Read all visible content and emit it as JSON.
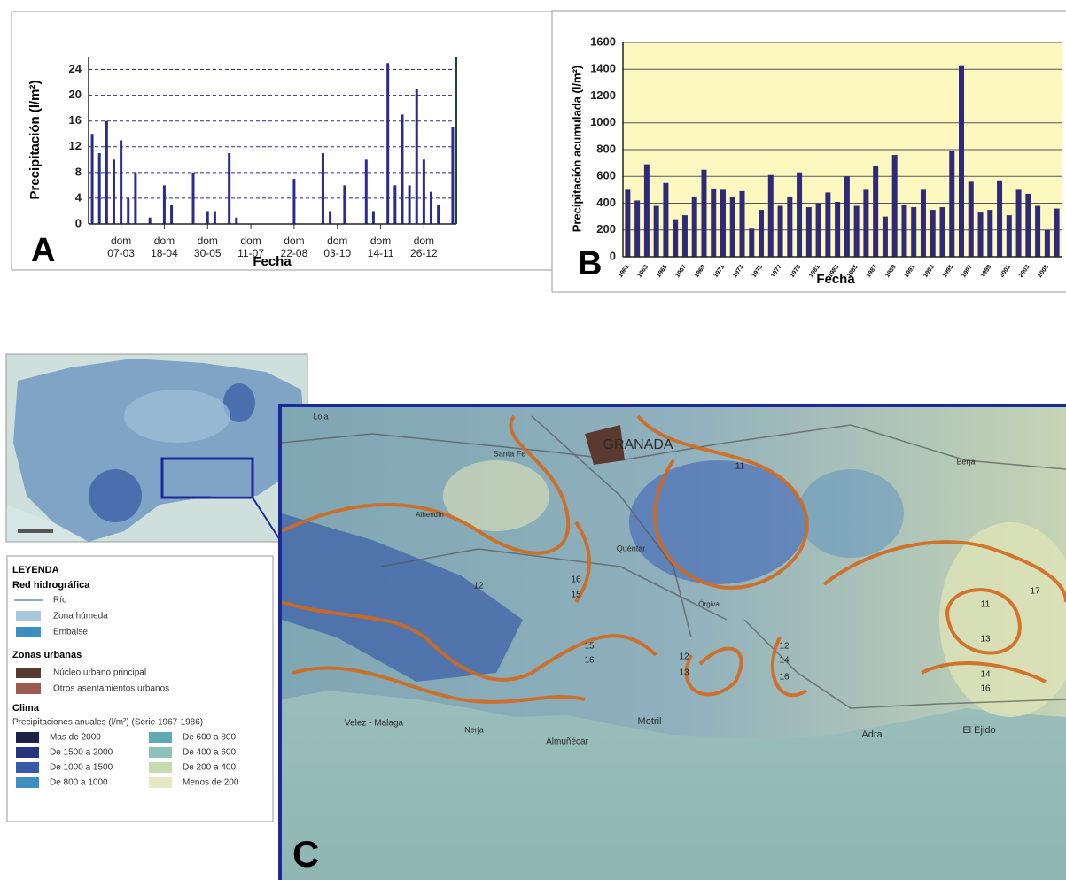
{
  "chart_data": [
    {
      "type": "bar",
      "panel": "A",
      "y_label": "Precipitación (l/m²)",
      "x_label": "Fecha",
      "color": "#2b2b8f",
      "grid": true,
      "categories": [
        null,
        null,
        null,
        null,
        "dom 07-03",
        null,
        null,
        null,
        null,
        null,
        "dom 18-04",
        null,
        null,
        null,
        null,
        null,
        "dom 30-05",
        null,
        null,
        null,
        null,
        null,
        "dom 11-07",
        null,
        null,
        null,
        null,
        null,
        "dom 22-08",
        null,
        null,
        null,
        null,
        null,
        "dom 03-10",
        null,
        null,
        null,
        null,
        null,
        "dom 14-11",
        null,
        null,
        null,
        null,
        null,
        "dom 26-12",
        null,
        null,
        null,
        null
      ],
      "values": [
        14,
        11,
        16,
        10,
        13,
        4,
        8,
        0,
        1,
        0,
        6,
        3,
        0,
        0,
        8,
        0,
        2,
        2,
        0,
        11,
        1,
        0,
        0,
        0,
        0,
        0,
        0,
        0,
        7,
        0,
        0,
        0,
        11,
        2,
        0,
        6,
        0,
        0,
        10,
        2,
        0,
        25,
        6,
        17,
        6,
        21,
        10,
        5,
        3,
        0,
        15
      ],
      "ylim": [
        0,
        26
      ],
      "yticks": [
        0,
        4,
        8,
        12,
        16,
        20,
        24
      ]
    },
    {
      "type": "bar",
      "panel": "B",
      "y_label": "Precipitación acumulada (l/m²)",
      "x_label": "Fecha",
      "color": "#2e2a78",
      "plot_background": "#fdf8c0",
      "grid": true,
      "categories": [
        "1961",
        null,
        "1963",
        null,
        "1965",
        null,
        "1967",
        null,
        "1969",
        null,
        "1971",
        null,
        "1973",
        null,
        "1975",
        null,
        "1977",
        null,
        "1979",
        null,
        "1981",
        null,
        "1983",
        null,
        "1985",
        null,
        "1987",
        null,
        "1989",
        null,
        "1991",
        null,
        "1993",
        null,
        "1995",
        null,
        "1997",
        null,
        "1999",
        null,
        "2001",
        null,
        "2003",
        null,
        "2005",
        null
      ],
      "values": [
        500,
        420,
        690,
        380,
        550,
        280,
        310,
        450,
        650,
        510,
        500,
        450,
        490,
        210,
        350,
        610,
        380,
        450,
        630,
        370,
        400,
        480,
        410,
        600,
        380,
        500,
        680,
        300,
        760,
        390,
        370,
        500,
        350,
        370,
        790,
        1430,
        560,
        330,
        350,
        570,
        310,
        500,
        470,
        380,
        200,
        360
      ],
      "ylim": [
        0,
        1600
      ],
      "yticks": [
        0,
        200,
        400,
        600,
        800,
        1000,
        1200,
        1400,
        1600
      ]
    }
  ],
  "map": {
    "panel": "C",
    "places": [
      "GRANADA",
      "Santa Fe",
      "Loja",
      "Alhendín",
      "Quéntar",
      "Órgiva",
      "Motril",
      "Almuñécar",
      "Nerja",
      "Velez - Malaga",
      "Adra",
      "El Ejido",
      "Berja"
    ],
    "contour_labels": [
      11,
      16,
      15,
      12,
      12,
      13,
      15,
      16,
      12,
      14,
      16,
      11,
      13,
      14,
      16,
      17
    ],
    "legend": {
      "title": "LEYENDA",
      "hydro_title": "Red hidrográfica",
      "hydro": [
        "Río",
        "Zona húmeda",
        "Embalse"
      ],
      "urban_title": "Zonas urbanas",
      "urban": [
        "Núcleo urbano principal",
        "Otros asentamientos urbanos"
      ],
      "climate_title": "Clima",
      "climate_subtitle": "Precipitaciones anuales (l/m²) (Serie 1967-1986)",
      "classes": [
        {
          "label": "Mas de 2000",
          "color": "#1b2448"
        },
        {
          "label": "De 1500 a 2000",
          "color": "#24357e"
        },
        {
          "label": "De 1000 a 1500",
          "color": "#3a5aa8"
        },
        {
          "label": "De 800 a 1000",
          "color": "#3e8fbf"
        },
        {
          "label": "De 600 a 800",
          "color": "#5fa9b2"
        },
        {
          "label": "De 400 a 600",
          "color": "#8fc1bb"
        },
        {
          "label": "De 200 a 400",
          "color": "#c6dcb0"
        },
        {
          "label": "Menos de 200",
          "color": "#e7e9c6"
        }
      ]
    }
  }
}
